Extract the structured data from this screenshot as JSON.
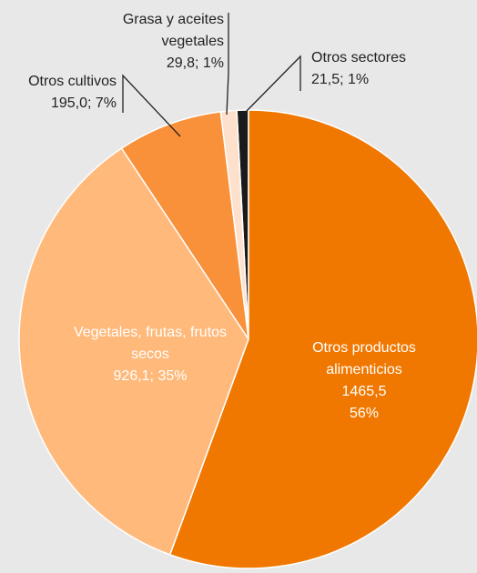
{
  "chart_data": {
    "type": "pie",
    "categories": [
      "Otros productos alimenticios",
      "Vegetales, frutas, frutos secos",
      "Otros cultivos",
      "Grasa y aceites vegetales",
      "Otros sectores"
    ],
    "values": [
      1465.5,
      926.1,
      195.0,
      29.8,
      21.5
    ],
    "value_labels": [
      "1465,5\n56%",
      "926,1; 35%",
      "195,0; 7%",
      "29,8; 1%",
      "21,5; 1%"
    ],
    "colors": [
      "#f07800",
      "#ffb97a",
      "#f9913a",
      "#fde1cc",
      "#1a1a1a"
    ]
  }
}
